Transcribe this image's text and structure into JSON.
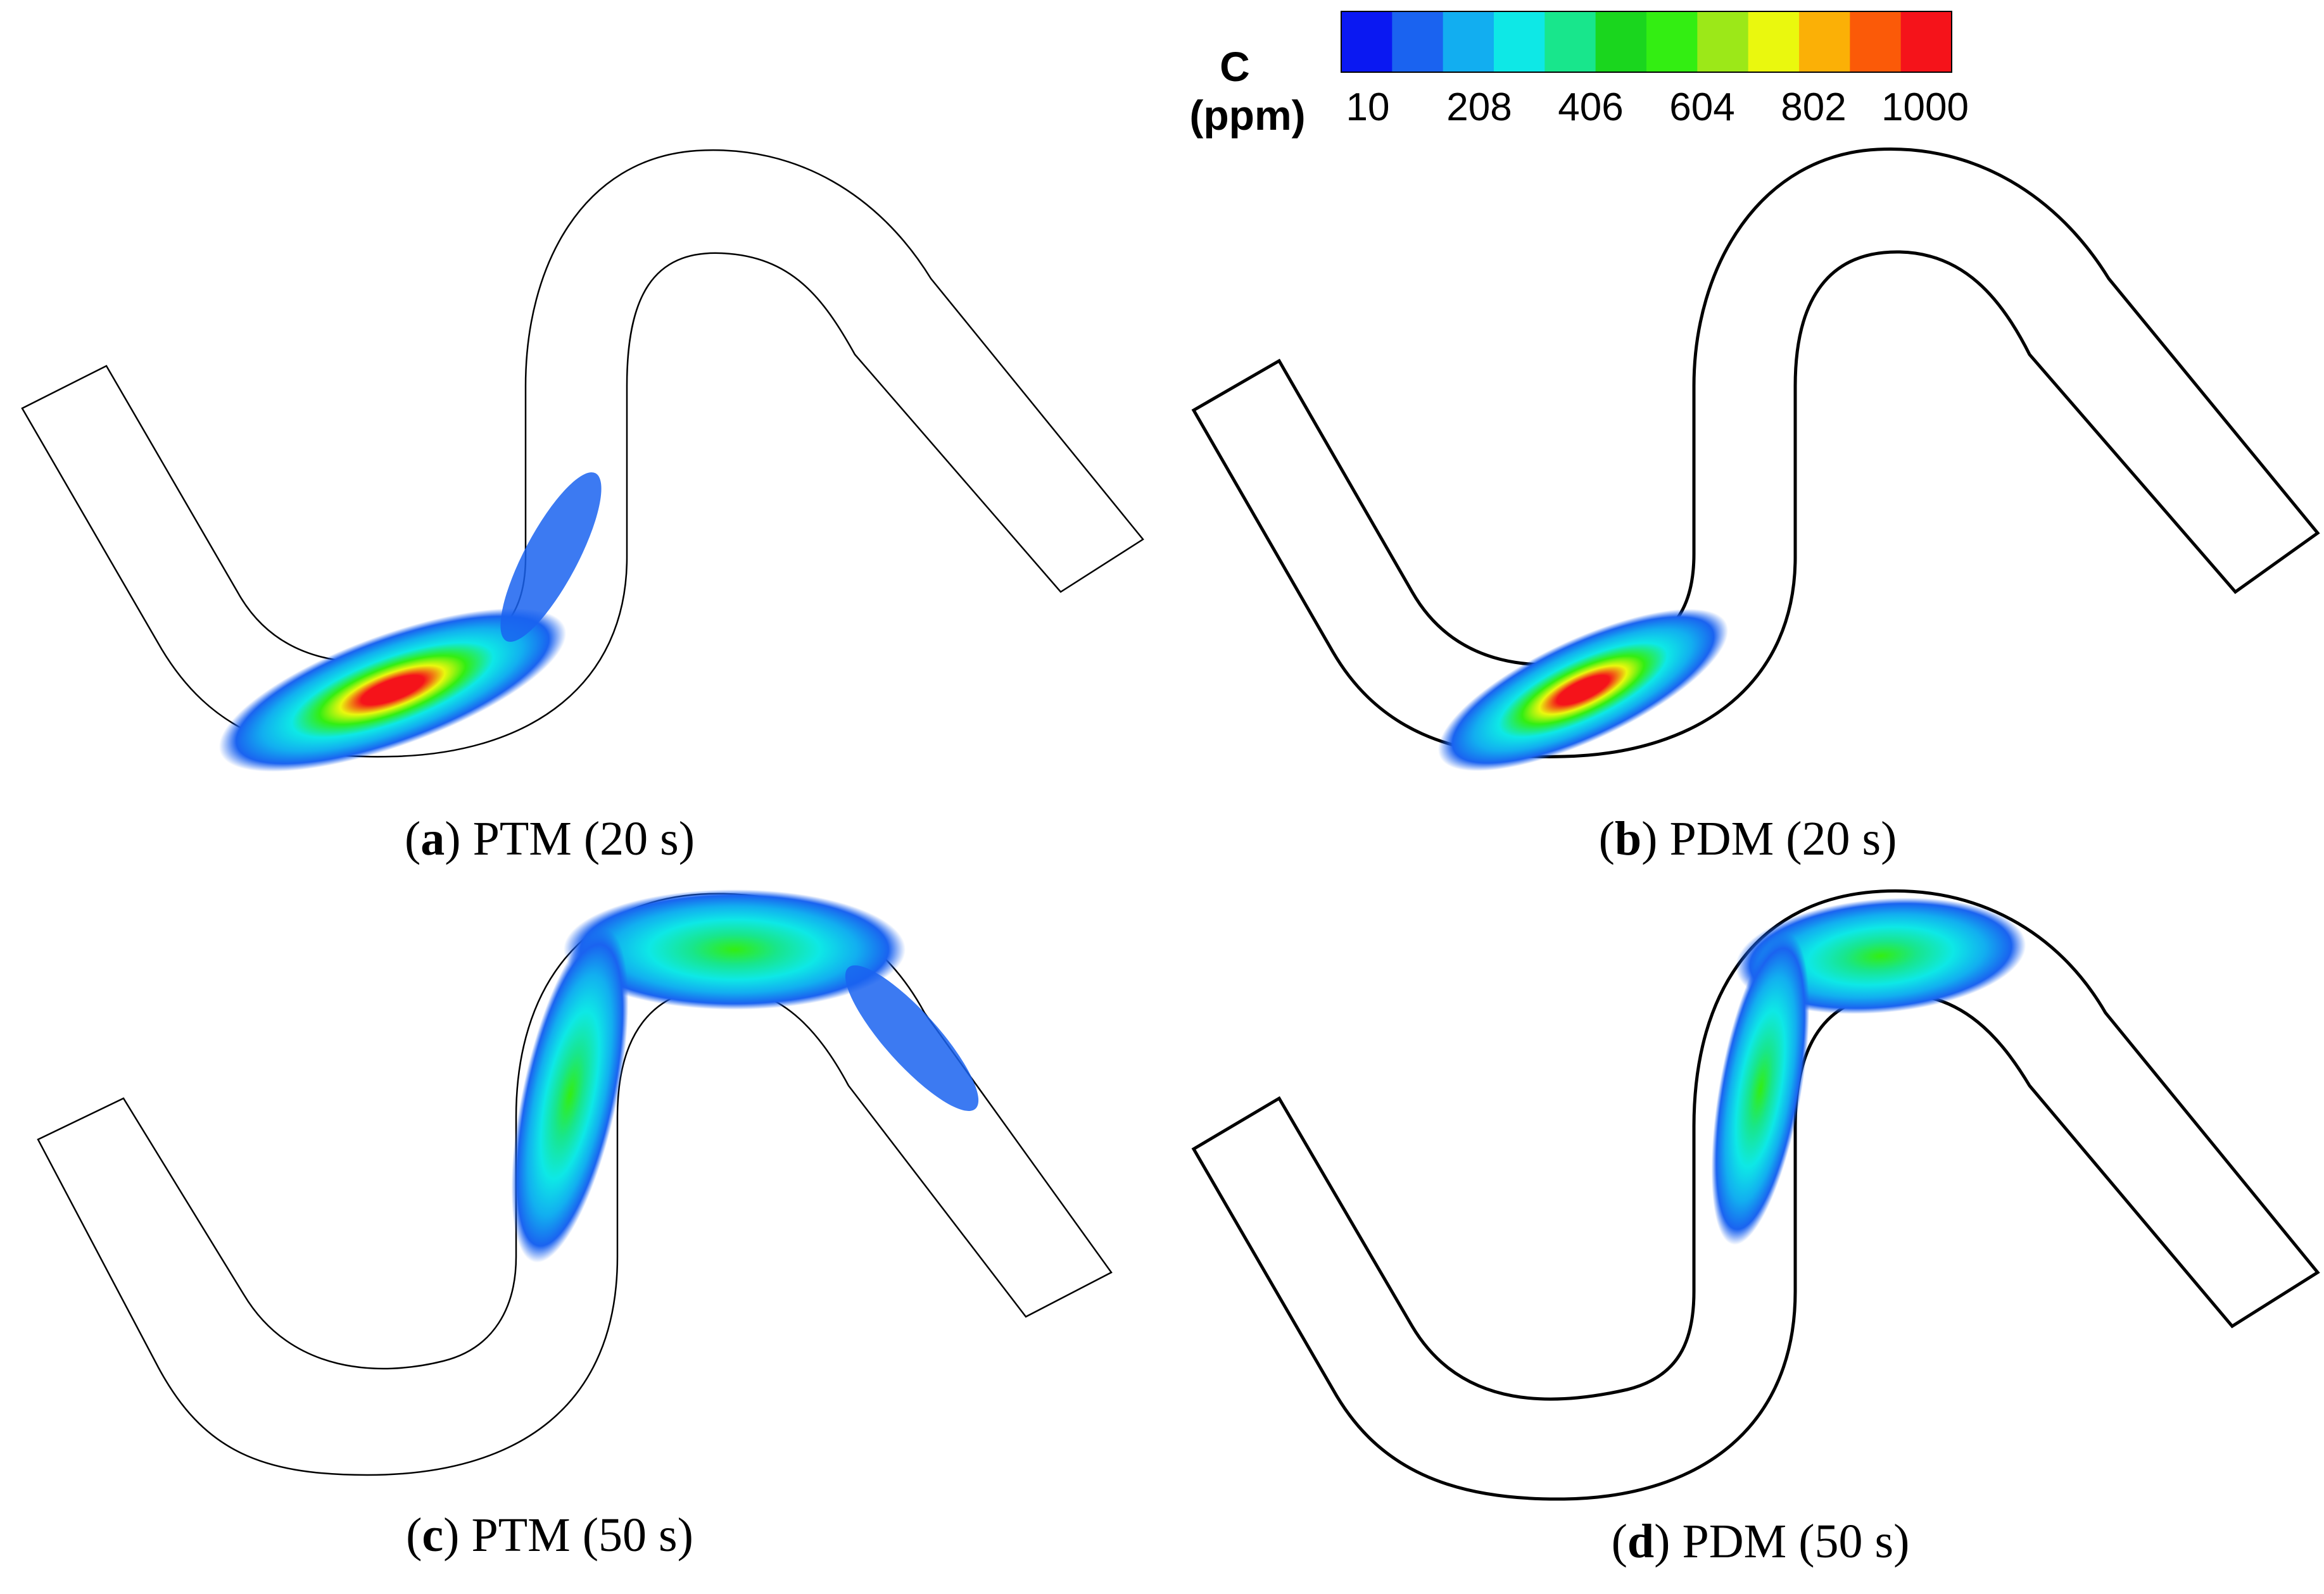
{
  "colorbar": {
    "title_line1": "C",
    "title_line2": "(ppm)",
    "ticks": [
      "10",
      "208",
      "406",
      "604",
      "802",
      "1000"
    ],
    "colors": [
      "#0a18f2",
      "#1a63f0",
      "#12aef0",
      "#0ee8e6",
      "#18e68c",
      "#1ad61e",
      "#33ee12",
      "#9ce818",
      "#eaf80e",
      "#fbb006",
      "#fb5a08",
      "#f5131a"
    ]
  },
  "panels": [
    {
      "letter": "a",
      "text": "PTM (20 s)"
    },
    {
      "letter": "b",
      "text": "PDM (20 s)"
    },
    {
      "letter": "c",
      "text": "PTM (50 s)"
    },
    {
      "letter": "d",
      "text": "PDM (50 s)"
    }
  ]
}
